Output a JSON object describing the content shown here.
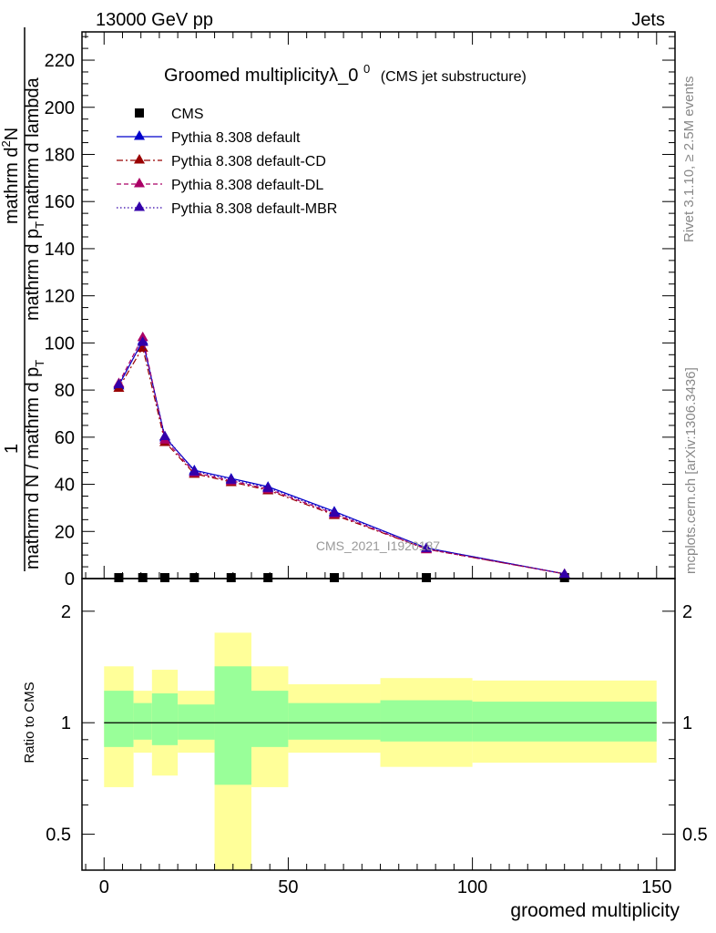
{
  "header": {
    "left": "13000 GeV pp",
    "right": "Jets"
  },
  "right_labels": {
    "rivet": "Rivet 3.1.10, ≥ 2.5M events",
    "mcplots": "mcplots.cern.ch [arXiv:1306.3436]"
  },
  "watermark": "CMS_2021_I1920187",
  "chart_data": [
    {
      "type": "line",
      "title": "Groomed multiplicityλ_0",
      "title_sup": "0",
      "title_suffix": "(CMS jet substructure)",
      "ylabel": {
        "one": "1",
        "left_numerator": "mathrm d N / mathrm d p",
        "left_sub": "T",
        "right_numerator": "mathrm d",
        "right_sup": "2",
        "right_n": "N",
        "denominator": "mathrm d p",
        "denominator_sub": "T",
        "denominator_rest": "mathrm d lambda"
      },
      "ylim": [
        0,
        232
      ],
      "xlim": [
        -6,
        155
      ],
      "y_ticks": [
        0,
        20,
        40,
        60,
        80,
        100,
        120,
        140,
        160,
        180,
        200,
        220
      ],
      "y_tick_labels": [
        "0",
        "20",
        "40",
        "60",
        "80",
        "100",
        "120",
        "140",
        "160",
        "180",
        "200",
        "220"
      ],
      "legend_position": "top-left",
      "series": [
        {
          "name": "CMS",
          "color": "#000000",
          "marker": "square",
          "x": [
            4,
            10.5,
            16.5,
            24.5,
            34.5,
            44.5,
            62.5,
            87.5,
            125
          ],
          "y": [
            0,
            0,
            0,
            0,
            0,
            0,
            0,
            0,
            0
          ]
        },
        {
          "name": "Pythia 8.308 default",
          "color": "#0000cc",
          "marker": "triangle",
          "dash": "solid",
          "x": [
            4,
            10.5,
            16.5,
            24.5,
            34.5,
            44.5,
            62.5,
            87.5,
            125
          ],
          "y": [
            82,
            101,
            60,
            46,
            42.5,
            39,
            28.5,
            13,
            2
          ]
        },
        {
          "name": "Pythia 8.308 default-CD",
          "color": "#990000",
          "marker": "triangle",
          "dash": "dashdot",
          "x": [
            4,
            10.5,
            16.5,
            24.5,
            34.5,
            44.5,
            62.5,
            87.5,
            125
          ],
          "y": [
            81,
            98,
            58,
            44.5,
            41,
            37.5,
            27,
            12.5,
            2
          ]
        },
        {
          "name": "Pythia 8.308 default-DL",
          "color": "#aa0066",
          "marker": "triangle",
          "dash": "dashed",
          "x": [
            4,
            10.5,
            16.5,
            24.5,
            34.5,
            44.5,
            62.5,
            87.5,
            125
          ],
          "y": [
            83,
            102.5,
            59,
            45,
            41.5,
            38,
            27.5,
            12.5,
            2
          ]
        },
        {
          "name": "Pythia 8.308 default-MBR",
          "color": "#3300aa",
          "marker": "triangle",
          "dash": "dotted",
          "x": [
            4,
            10.5,
            16.5,
            24.5,
            34.5,
            44.5,
            62.5,
            87.5,
            125
          ],
          "y": [
            82.5,
            100.5,
            60.5,
            45.5,
            42,
            38.5,
            28,
            13,
            2
          ]
        }
      ]
    },
    {
      "type": "area",
      "ylabel": "Ratio to CMS",
      "xlabel": "groomed multiplicity",
      "scale": "log",
      "ylim": [
        0.4,
        2.45
      ],
      "xlim": [
        -6,
        155
      ],
      "x_ticks": [
        0,
        50,
        100,
        150
      ],
      "x_tick_labels": [
        "0",
        "50",
        "100",
        "150"
      ],
      "y_ticks": [
        0.5,
        1,
        2
      ],
      "y_tick_labels": [
        "0.5",
        "1",
        "2"
      ],
      "reference": 1,
      "bins": [
        {
          "x": [
            0,
            8
          ],
          "green": [
            0.86,
            1.22
          ],
          "yellow": [
            0.67,
            1.42
          ]
        },
        {
          "x": [
            8,
            13
          ],
          "green": [
            0.9,
            1.13
          ],
          "yellow": [
            0.83,
            1.22
          ]
        },
        {
          "x": [
            13,
            20
          ],
          "green": [
            0.87,
            1.2
          ],
          "yellow": [
            0.72,
            1.39
          ]
        },
        {
          "x": [
            20,
            30
          ],
          "green": [
            0.9,
            1.12
          ],
          "yellow": [
            0.83,
            1.22
          ]
        },
        {
          "x": [
            30,
            40
          ],
          "green": [
            0.68,
            1.42
          ],
          "yellow": [
            0.38,
            1.75
          ]
        },
        {
          "x": [
            40,
            50
          ],
          "green": [
            0.86,
            1.22
          ],
          "yellow": [
            0.67,
            1.42
          ]
        },
        {
          "x": [
            50,
            75
          ],
          "green": [
            0.9,
            1.13
          ],
          "yellow": [
            0.83,
            1.27
          ]
        },
        {
          "x": [
            75,
            100
          ],
          "green": [
            0.89,
            1.15
          ],
          "yellow": [
            0.76,
            1.32
          ]
        },
        {
          "x": [
            100,
            150
          ],
          "green": [
            0.89,
            1.14
          ],
          "yellow": [
            0.78,
            1.3
          ]
        }
      ]
    }
  ],
  "colors": {
    "green_band": "#99ff99",
    "yellow_band": "#ffff99",
    "frame": "#000000"
  }
}
